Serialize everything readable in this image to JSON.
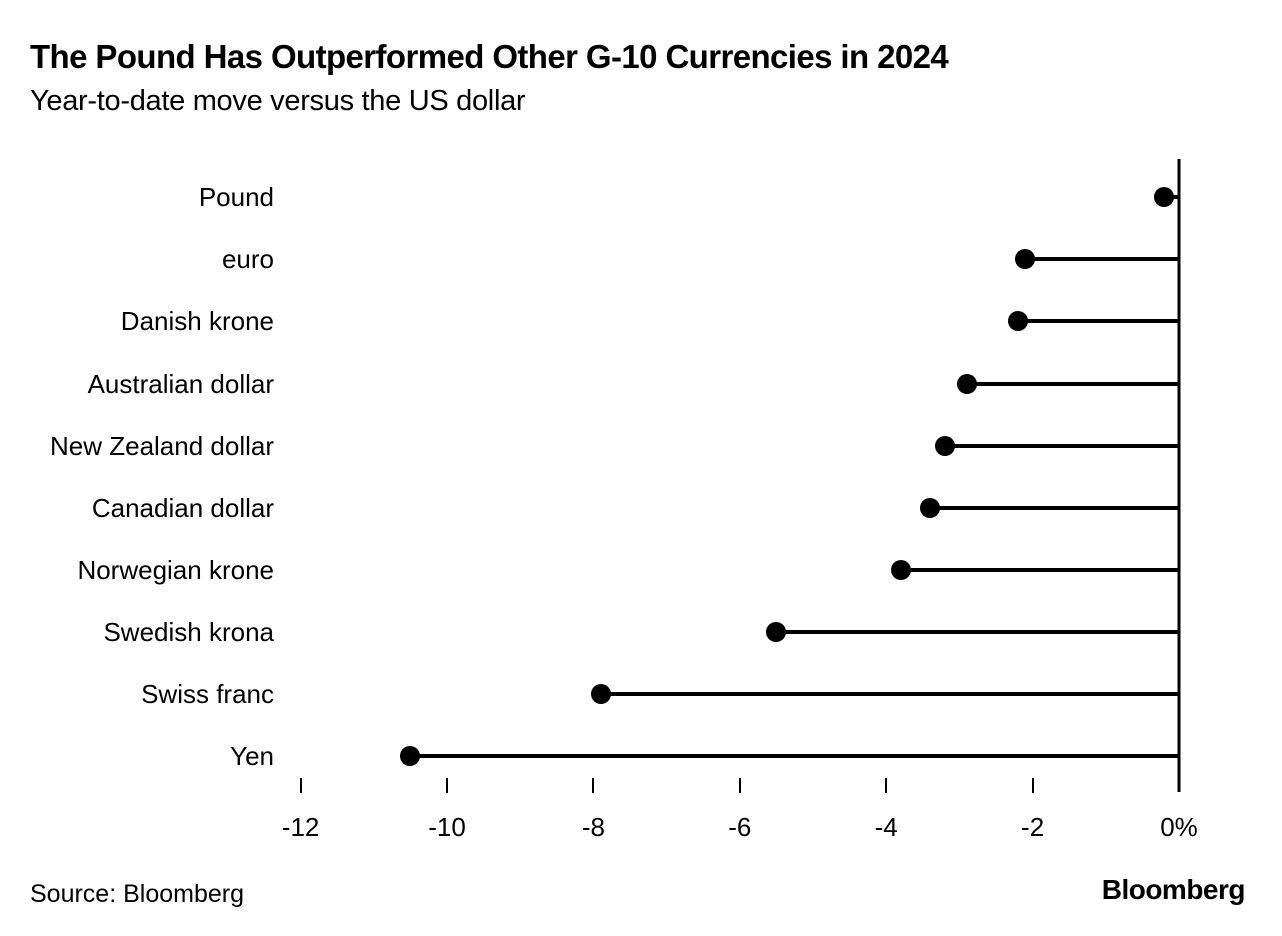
{
  "header": {
    "title": "The Pound Has Outperformed Other G-10 Currencies in 2024",
    "subtitle": "Year-to-date move versus the US dollar"
  },
  "chart_data": {
    "type": "lollipop",
    "orientation": "horizontal",
    "title": "The Pound Has Outperformed Other G-10 Currencies in 2024",
    "subtitle": "Year-to-date move versus the US dollar",
    "categories": [
      "Pound",
      "euro",
      "Danish krone",
      "Australian dollar",
      "New Zealand dollar",
      "Canadian dollar",
      "Norwegian krone",
      "Swedish krona",
      "Swiss franc",
      "Yen"
    ],
    "values": [
      -0.2,
      -2.1,
      -2.2,
      -2.9,
      -3.2,
      -3.4,
      -3.8,
      -5.5,
      -7.9,
      -10.5
    ],
    "unit": "%",
    "baseline": 0,
    "xlim": [
      -13,
      0
    ],
    "x_ticks": [
      {
        "value": -12,
        "label": "-12"
      },
      {
        "value": -10,
        "label": "-10"
      },
      {
        "value": -8,
        "label": "-8"
      },
      {
        "value": -6,
        "label": "-6"
      },
      {
        "value": -4,
        "label": "-4"
      },
      {
        "value": -2,
        "label": "-2"
      },
      {
        "value": 0,
        "label": "0%"
      }
    ],
    "grid": false,
    "legend": "none",
    "colors": {
      "dot": "#000000",
      "line": "#000000",
      "axis": "#000000",
      "text": "#000000",
      "background": "#ffffff"
    }
  },
  "footer": {
    "source": "Source: Bloomberg",
    "brand": "Bloomberg"
  }
}
